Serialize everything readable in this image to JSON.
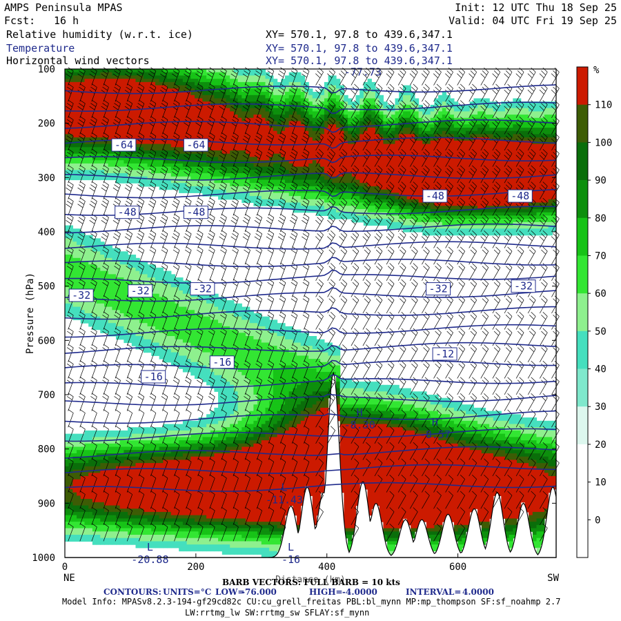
{
  "header": {
    "model": "AMPS Peninsula MPAS",
    "fcst_label": "Fcst:",
    "fcst_value": "16 h",
    "init": "Init: 12 UTC Thu 18 Sep 25",
    "valid": "Valid: 04 UTC Fri 19 Sep 25",
    "fields": [
      {
        "name": "Relative humidity (w.r.t. ice)",
        "xy": "XY= 570.1, 97.8 to 439.6,347.1"
      },
      {
        "name": "Temperature",
        "xy": "XY= 570.1, 97.8 to 439.6,347.1"
      },
      {
        "name": "Horizontal wind vectors",
        "xy": "XY= 570.1, 97.8 to 439.6,347.1"
      }
    ]
  },
  "chart_data": {
    "type": "heatmap",
    "title": "Relative humidity (w.r.t. ice), Temperature, Horizontal wind vectors",
    "ylabel": "Pressure (hPa)",
    "xlabel": "Distance (km)",
    "xlim": [
      0,
      750
    ],
    "ylim": [
      1000,
      100
    ],
    "x_ticks": [
      0,
      200,
      400,
      600
    ],
    "y_ticks": [
      100,
      200,
      300,
      400,
      500,
      600,
      700,
      800,
      900,
      1000
    ],
    "x_end_labels": {
      "left": "NE",
      "right": "SW"
    },
    "colorbar": {
      "unit": "%",
      "levels": [
        0,
        10,
        20,
        30,
        40,
        50,
        60,
        70,
        80,
        90,
        100,
        110
      ],
      "colors": [
        "#ffffff",
        "#ffffff",
        "#ffffff",
        "#ddf7ee",
        "#7fe8cc",
        "#45dfbe",
        "#8ef08e",
        "#33e633",
        "#17c317",
        "#0d8f0d",
        "#0a6e0a",
        "#3d5c05",
        "#cc1a00"
      ]
    },
    "temperature_contours": {
      "units": "°C",
      "low": "-76.000",
      "high": "-4.0000",
      "interval": "4.0000",
      "labels": [
        {
          "value": "-64",
          "x": 90,
          "p": 240
        },
        {
          "value": "-64",
          "x": 200,
          "p": 240
        },
        {
          "value": "-48",
          "x": 95,
          "p": 364
        },
        {
          "value": "-48",
          "x": 200,
          "p": 364
        },
        {
          "value": "-48",
          "x": 565,
          "p": 334
        },
        {
          "value": "-48",
          "x": 695,
          "p": 334
        },
        {
          "value": "-32",
          "x": 25,
          "p": 517
        },
        {
          "value": "-32",
          "x": 115,
          "p": 509
        },
        {
          "value": "-32",
          "x": 210,
          "p": 505
        },
        {
          "value": "-32",
          "x": 570,
          "p": 505
        },
        {
          "value": "-32",
          "x": 700,
          "p": 500
        },
        {
          "value": "-16",
          "x": 135,
          "p": 667
        },
        {
          "value": "-16",
          "x": 240,
          "p": 640
        },
        {
          "value": "-12",
          "x": 580,
          "p": 625
        }
      ],
      "extrema": [
        {
          "kind": "H",
          "value": "-8.30",
          "x": 450,
          "p": 752
        },
        {
          "kind": "H",
          "value": "-8.57",
          "x": 565,
          "p": 770
        },
        {
          "kind": "L",
          "value": "-11.43",
          "x": 335,
          "p": 890
        },
        {
          "kind": "L",
          "value": "-20.88",
          "x": 130,
          "p": 1000
        },
        {
          "kind": "L",
          "value": "-16",
          "x": 345,
          "p": 1000
        }
      ],
      "top_label": {
        "value": "-77.73",
        "x": 455,
        "p": 112
      }
    },
    "footer": {
      "barb_note": "BARB VECTORS: FULL BARB = 10 kts",
      "contours_label": "CONTOURS:",
      "units_label": "UNITS=°C",
      "low_label": "LOW=",
      "high_label": "HIGH=",
      "interval_label": "INTERVAL="
    }
  },
  "model_info": {
    "line1": "Model Info: MPASv8.2.3-194-gf29cd82c CU:cu_grell_freitas PBL:bl_mynn MP:mp_thompson SF:sf_noahmp 2.7",
    "line2": "LW:rrtmg_lw SW:rrtmg_sw SFLAY:sf_mynn"
  }
}
